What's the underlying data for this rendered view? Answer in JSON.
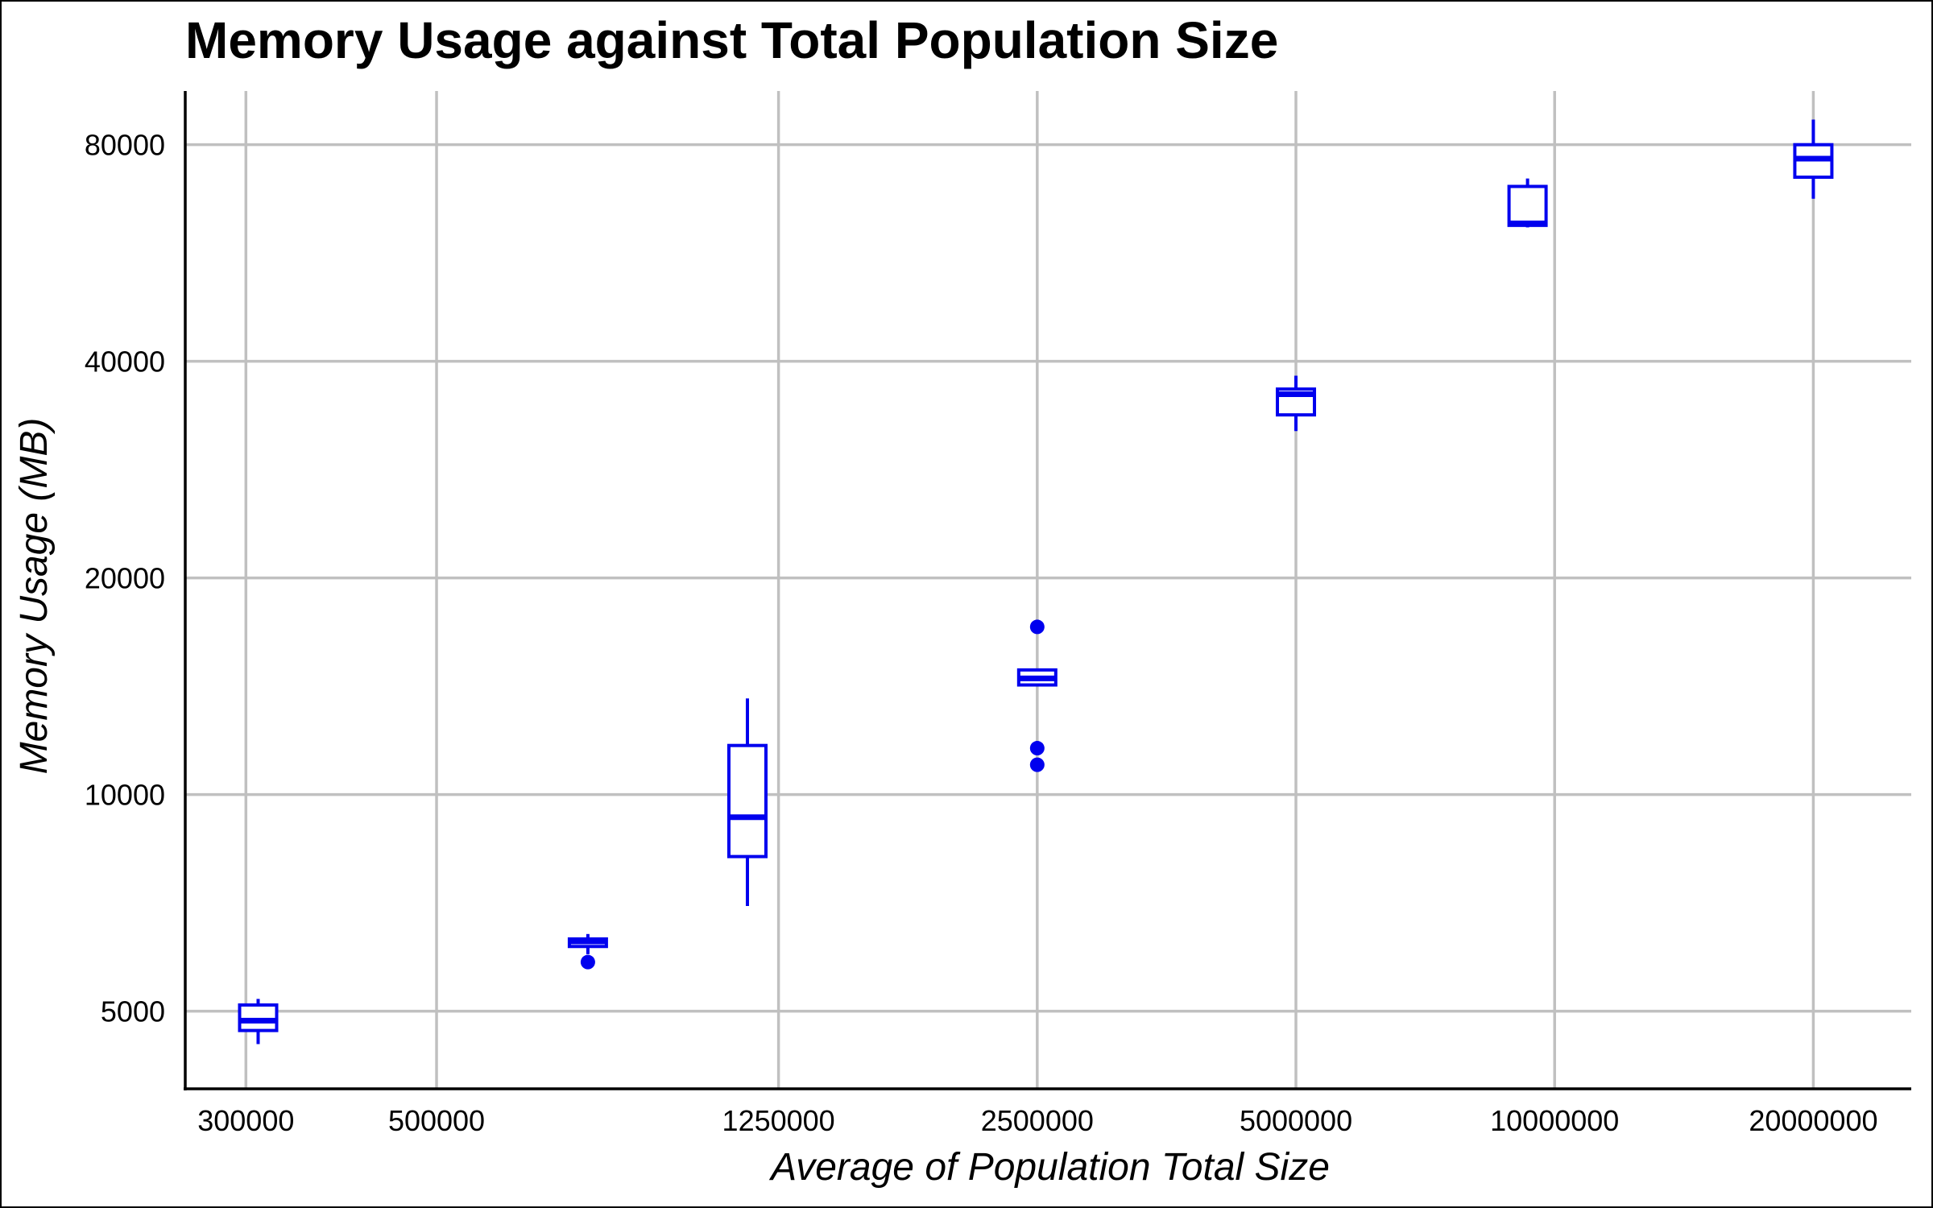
{
  "chart_data": {
    "type": "boxplot",
    "title": "Memory Usage against Total Population Size",
    "xlabel": "Average of Population Total Size",
    "ylabel": "Memory Usage (MB)",
    "x_scale": "log",
    "y_scale": "log",
    "xlim": [
      255000,
      26000000
    ],
    "ylim": [
      3900,
      95000
    ],
    "x_ticks": [
      300000,
      500000,
      1250000,
      2500000,
      5000000,
      10000000,
      20000000
    ],
    "x_tick_labels": [
      "300000",
      "500000",
      "1250000",
      "2500000",
      "5000000",
      "10000000",
      "20000000"
    ],
    "y_ticks": [
      5000,
      10000,
      20000,
      40000,
      80000
    ],
    "y_tick_labels": [
      "5000",
      "10000",
      "20000",
      "40000",
      "80000"
    ],
    "grid": true,
    "legend": "none",
    "color": "#0000ee",
    "boxes": [
      {
        "x": 310000,
        "whisker_low": 4500,
        "q1": 4700,
        "median": 4850,
        "q3": 5100,
        "whisker_high": 5200,
        "outliers": []
      },
      {
        "x": 750000,
        "whisker_low": 6000,
        "q1": 6150,
        "median": 6250,
        "q3": 6300,
        "whisker_high": 6400,
        "outliers": [
          5850
        ]
      },
      {
        "x": 1150000,
        "whisker_low": 7000,
        "q1": 8200,
        "median": 9300,
        "q3": 11700,
        "whisker_high": 13600,
        "outliers": []
      },
      {
        "x": 2500000,
        "whisker_low": 14200,
        "q1": 14200,
        "median": 14500,
        "q3": 14900,
        "whisker_high": 14900,
        "outliers": [
          17100,
          11600,
          11000
        ]
      },
      {
        "x": 5000000,
        "whisker_low": 32000,
        "q1": 33700,
        "median": 36000,
        "q3": 36600,
        "whisker_high": 38200,
        "outliers": []
      },
      {
        "x": 9300000,
        "whisker_low": 61400,
        "q1": 61800,
        "median": 62200,
        "q3": 70000,
        "whisker_high": 71800,
        "outliers": []
      },
      {
        "x": 20000000,
        "whisker_low": 67300,
        "q1": 72100,
        "median": 76500,
        "q3": 80000,
        "whisker_high": 86700,
        "outliers": []
      }
    ]
  }
}
